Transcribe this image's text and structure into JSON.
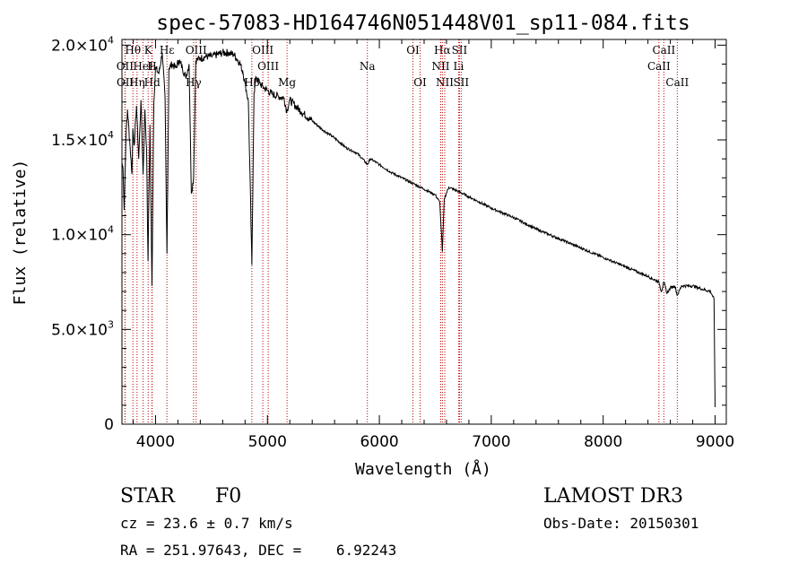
{
  "chart_data": {
    "type": "line",
    "title": "spec-57083-HD164746N051448V01_sp11-084.fits",
    "xlabel": "Wavelength (Å)",
    "ylabel": "Flux (relative)",
    "xlim": [
      3700,
      9100
    ],
    "ylim": [
      0,
      20300
    ],
    "x_ticks": [
      {
        "value": 4000,
        "label": "4000"
      },
      {
        "value": 5000,
        "label": "5000"
      },
      {
        "value": 6000,
        "label": "6000"
      },
      {
        "value": 7000,
        "label": "7000"
      },
      {
        "value": 8000,
        "label": "8000"
      },
      {
        "value": 9000,
        "label": "9000"
      }
    ],
    "y_ticks": [
      {
        "value": 0,
        "mantissa": "0",
        "exp": ""
      },
      {
        "value": 5000,
        "mantissa": "5.0×10",
        "exp": "3"
      },
      {
        "value": 10000,
        "mantissa": "1.0×10",
        "exp": "4"
      },
      {
        "value": 15000,
        "mantissa": "1.5×10",
        "exp": "4"
      },
      {
        "value": 20000,
        "mantissa": "2.0×10",
        "exp": "4"
      }
    ],
    "series": [
      {
        "name": "flux",
        "x": [
          3700,
          3710,
          3720,
          3735,
          3750,
          3770,
          3790,
          3798,
          3810,
          3830,
          3850,
          3870,
          3889,
          3905,
          3920,
          3933,
          3950,
          3968,
          3985,
          4000,
          4030,
          4060,
          4085,
          4102,
          4120,
          4150,
          4180,
          4210,
          4240,
          4270,
          4300,
          4320,
          4340,
          4360,
          4400,
          4450,
          4500,
          4550,
          4600,
          4650,
          4700,
          4750,
          4780,
          4800,
          4830,
          4861,
          4880,
          4900,
          4930,
          4960,
          5000,
          5050,
          5100,
          5150,
          5172,
          5200,
          5300,
          5400,
          5500,
          5600,
          5700,
          5800,
          5850,
          5893,
          5920,
          6000,
          6100,
          6200,
          6300,
          6400,
          6500,
          6540,
          6563,
          6580,
          6620,
          6700,
          6800,
          6900,
          7000,
          7200,
          7400,
          7600,
          7800,
          8000,
          8200,
          8400,
          8498,
          8520,
          8542,
          8570,
          8600,
          8640,
          8662,
          8700,
          8800,
          8900,
          8960,
          8990,
          9000
        ],
        "y": [
          13800,
          13500,
          11300,
          15000,
          16600,
          14900,
          13200,
          15600,
          14700,
          16800,
          14000,
          17100,
          13200,
          16600,
          14500,
          8600,
          15800,
          7300,
          17000,
          18800,
          18500,
          19600,
          17200,
          9000,
          18800,
          19000,
          18800,
          19200,
          18800,
          18300,
          19000,
          12200,
          13000,
          19200,
          19300,
          19400,
          19400,
          19500,
          19600,
          19600,
          19500,
          19100,
          18600,
          18000,
          17000,
          8400,
          17500,
          18300,
          18000,
          17800,
          17600,
          17400,
          17300,
          17200,
          16500,
          17100,
          16500,
          16000,
          15500,
          15100,
          14600,
          14300,
          14000,
          13700,
          14000,
          13700,
          13300,
          13000,
          12700,
          12400,
          12100,
          11700,
          9100,
          11900,
          12500,
          12300,
          12000,
          11700,
          11400,
          10900,
          10300,
          9800,
          9300,
          8800,
          8300,
          7800,
          7500,
          7000,
          7500,
          6900,
          7200,
          7300,
          6800,
          7300,
          7300,
          7100,
          7000,
          6600,
          900
        ]
      }
    ],
    "line_markers": [
      {
        "label": "Hθ",
        "wavelength": 3798,
        "row": 1
      },
      {
        "label": "OII",
        "wavelength": 3727,
        "row": 2
      },
      {
        "label": "OII",
        "wavelength": 3729,
        "row": 3
      },
      {
        "label": "Hη",
        "wavelength": 3835,
        "row": 3
      },
      {
        "label": "HeI",
        "wavelength": 3889,
        "row": 2
      },
      {
        "label": "K",
        "wavelength": 3934,
        "row": 1
      },
      {
        "label": "Hd",
        "wavelength": 3970,
        "row": 3
      },
      {
        "label": "H",
        "wavelength": 3968,
        "row": 2
      },
      {
        "label": "Hε",
        "wavelength": 4102,
        "row": 1
      },
      {
        "label": "OIII",
        "wavelength": 4363,
        "row": 1
      },
      {
        "label": "Hγ",
        "wavelength": 4340,
        "row": 3
      },
      {
        "label": "OIII",
        "wavelength": 4959,
        "row": 1
      },
      {
        "label": "OIII",
        "wavelength": 5007,
        "row": 2
      },
      {
        "label": "Hβ",
        "wavelength": 4861,
        "row": 3
      },
      {
        "label": "Mg",
        "wavelength": 5175,
        "row": 3
      },
      {
        "label": "Na",
        "wavelength": 5893,
        "row": 2
      },
      {
        "label": "OI",
        "wavelength": 6300,
        "row": 1
      },
      {
        "label": "OI",
        "wavelength": 6364,
        "row": 3
      },
      {
        "label": "Hα",
        "wavelength": 6563,
        "row": 1
      },
      {
        "label": "NII",
        "wavelength": 6548,
        "row": 2
      },
      {
        "label": "NII",
        "wavelength": 6584,
        "row": 3
      },
      {
        "label": "SII",
        "wavelength": 6716,
        "row": 1
      },
      {
        "label": "Li",
        "wavelength": 6708,
        "row": 2
      },
      {
        "label": "SII",
        "wavelength": 6731,
        "row": 3
      },
      {
        "label": "CaII",
        "wavelength": 8542,
        "row": 1
      },
      {
        "label": "CaII",
        "wavelength": 8498,
        "row": 2
      },
      {
        "label": "CaII",
        "wavelength": 8662,
        "row": 3
      }
    ]
  },
  "info": {
    "object_type": "STAR",
    "spectral_class": "F0",
    "survey": "LAMOST DR3",
    "cz": "cz = 23.6 ± 0.7 km/s",
    "obs_date": "Obs-Date: 20150301",
    "coords": "RA = 251.97643, DEC =    6.92243"
  }
}
